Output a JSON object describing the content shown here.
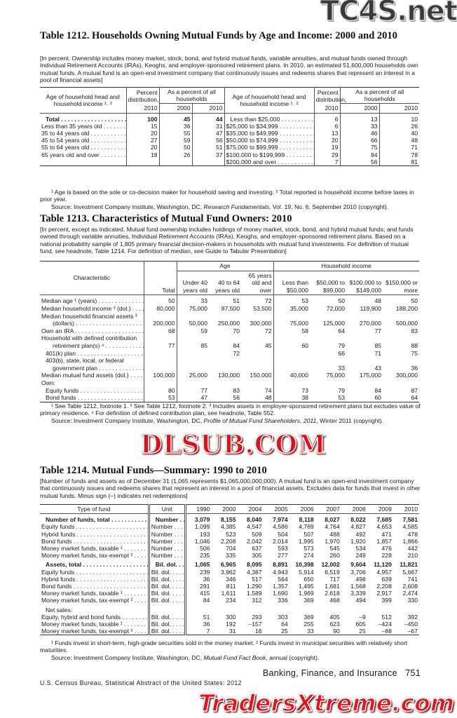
{
  "watermarks": {
    "top": "TC4S.net",
    "middle": "DLSUB.COM",
    "bottom": "TradersXtreme.com"
  },
  "t1212": {
    "title": "Table 1212. Households Owning Mutual Funds by Age and Income: 2000 and 2010",
    "headnote": "[In percent. Ownership includes money market, stock, bond, and hybrid mutual funds, variable annuities, and mutual funds owned through Individual Retirement Accounts (IRAs), Keoghs, and employer-sponsored retirement plans. In 2010, an estimated 51,600,000 households own mutual funds. A mutual fund is an open-end investment company that continuously issues and redeems shares that represent an interest in a pool of financial assets]",
    "header": {
      "label": "Age of household head and household income ¹˒ ²",
      "pct": "Percent distribution,",
      "pct_year": "2010",
      "share": "As a percent of all households",
      "y2000": "2000",
      "y2010": "2010"
    },
    "rows": [
      {
        "total": true,
        "left": [
          "Total",
          "100",
          "45",
          "44"
        ],
        "right": [
          "Less than $25,000",
          "6",
          "13",
          "10"
        ]
      },
      {
        "left": [
          "Less than 35 years old",
          "15",
          "36",
          "31"
        ],
        "right": [
          "$25,000 to $34,999",
          "6",
          "33",
          "26"
        ]
      },
      {
        "left": [
          "35 to 44 years old",
          "20",
          "55",
          "47"
        ],
        "right": [
          "$35,000 to $49,999",
          "13",
          "46",
          "40"
        ]
      },
      {
        "left": [
          "45 to 54 years old",
          "27",
          "59",
          "56"
        ],
        "right": [
          "$50,000 to $74,999",
          "20",
          "66",
          "48"
        ]
      },
      {
        "left": [
          "55 to 64 years old",
          "20",
          "50",
          "51"
        ],
        "right": [
          "$75,000 to $99,999",
          "19",
          "75",
          "71"
        ]
      },
      {
        "left": [
          "65 years old and over",
          "18",
          "26",
          "37"
        ],
        "right": [
          "$100,000 to $199,999",
          "29",
          "84",
          "78"
        ]
      },
      {
        "left": [
          "",
          "",
          "",
          ""
        ],
        "right": [
          "$200,000 and over",
          "7",
          "56",
          "81"
        ]
      }
    ],
    "footnote": "¹ Age is based on the sole or co-decision maker for household saving and investing. ² Total reported is household income before taxes in prior year.",
    "source": {
      "pre": "Source: Investment Company Institute, Washington, DC, ",
      "italic": "Research Fundamentals",
      "post": ", Vol. 19, No. 6, September 2010 (copyright)."
    }
  },
  "t1213": {
    "title": "Table 1213. Characteristics of Mutual Fund Owners: 2010",
    "headnote": "[In percent, except as indicated. Mutual fund ownership includes holdings of money market, stock, bond, and hybrid mutual funds; and funds owned through variable annuities, Individual Retirement Accounts (IRAs), Keoghs, and employer-sponsored retirement plans. Based on a national probability sample of 1,805 primary financial decision-makers in households with mutual fund investments. For definition of mutual fund, see headnote, Table 1214. For definition of median, see Guide to Tabular Presentation]",
    "header": {
      "label": "Characteristic",
      "total": "Total",
      "age": "Age",
      "income": "Household income",
      "cols": [
        "Under 40 years old",
        "40 to 64 years old",
        "65 years old and over",
        "Less than $50,000",
        "$50,000 to $99,000",
        "$100,000 to $149,000",
        "$150,000 or more"
      ]
    },
    "rows": [
      {
        "label": "Median age ¹ (years)",
        "values": [
          "50",
          "33",
          "51",
          "72",
          "53",
          "50",
          "48",
          "50"
        ]
      },
      {
        "label": "Median household income ² (dol.)",
        "values": [
          "80,000",
          "75,000",
          "87,500",
          "53,500",
          "35,000",
          "72,000",
          "119,900",
          "188,200"
        ]
      },
      {
        "label": "Median household financial assets ³",
        "nodots": true,
        "values": []
      },
      {
        "label": "(dollars)",
        "indent": 2,
        "values": [
          "200,000",
          "50,000",
          "250,000",
          "300,000",
          "75,000",
          "125,000",
          "270,000",
          "500,000"
        ]
      },
      {
        "label": "Own an IRA",
        "values": [
          "68",
          "59",
          "70",
          "72",
          "58",
          "64",
          "77",
          "83"
        ]
      },
      {
        "label": "Household with defined contribution",
        "nodots": true,
        "values": []
      },
      {
        "label": "retirement plan(s) ⁴",
        "indent": 2,
        "values": [
          "77",
          "85",
          "84",
          "45",
          "60",
          "79",
          "85",
          "88"
        ]
      },
      {
        "label": "401(k) plan",
        "indent": 1,
        "values": [
          "",
          "",
          "72",
          "",
          "",
          "66",
          "71",
          "75"
        ]
      },
      {
        "label": "403(b), state, local, or federal",
        "indent": 1,
        "nodots": true,
        "values": []
      },
      {
        "label": "government plan",
        "indent": 2,
        "values": [
          "",
          "",
          "",
          "",
          "",
          "33",
          "43",
          "36"
        ]
      },
      {
        "label": "Median mutual fund assets (dol.)",
        "values": [
          "100,000",
          "25,000",
          "130,000",
          "150,000",
          "40,000",
          "75,000",
          "175,000",
          "300,000"
        ]
      },
      {
        "label": "Own:",
        "nodots": true,
        "values": []
      },
      {
        "label": "Equity funds",
        "indent": 1,
        "values": [
          "80",
          "77",
          "83",
          "74",
          "73",
          "79",
          "84",
          "87"
        ]
      },
      {
        "label": "Bond funds",
        "indent": 1,
        "values": [
          "53",
          "47",
          "56",
          "48",
          "38",
          "53",
          "60",
          "64"
        ]
      }
    ],
    "footnote": "¹ See Table 1212, footnote 1. ² See Table 1212, footnote 2. ³ Includes assets in employer-sponsored retirement plans but excludes value of primary residence. ⁴ For definition of defined contribution plan, see headnote, Table 552.",
    "source": {
      "pre": "Source: Investment Company Institute, Washington, DC, ",
      "italic": "Profile of Mutual Fund Shareholders, 2011",
      "post": ", Winter 2011 (copyright)."
    }
  },
  "t1214": {
    "title": "Table 1214. Mutual Funds—Summary: 1990 to 2010",
    "headnote": "[Number of funds and assets as of December 31 (1,065 represents $1,065,000,000,000). A mutual fund is an open-end investment company that continuously issues and redeems shares that represent an interest in a pool of financial assets. Excludes data for funds that invest in other mutual funds. Minus sign (–) indicates net redemptions]",
    "header": {
      "label": "Type of fund",
      "unit": "Unit",
      "years": [
        "1990",
        "2000",
        "2004",
        "2005",
        "2006",
        "2007",
        "2008",
        "2009",
        "2010"
      ]
    },
    "rows": [
      {
        "label": "Number of funds, total",
        "unit": "Number",
        "total": true,
        "values": [
          "3,079",
          "8,155",
          "8,040",
          "7,974",
          "8,118",
          "8,027",
          "8,022",
          "7,685",
          "7,581"
        ]
      },
      {
        "label": "Equity funds",
        "unit": "Number",
        "values": [
          "1,099",
          "4,385",
          "4,547",
          "4,586",
          "4,769",
          "4,764",
          "4,827",
          "4,653",
          "4,585"
        ]
      },
      {
        "label": "Hybrid funds",
        "unit": "Number",
        "values": [
          "193",
          "523",
          "509",
          "504",
          "507",
          "488",
          "492",
          "471",
          "478"
        ]
      },
      {
        "label": "Bond funds",
        "unit": "Number",
        "values": [
          "1,046",
          "2,208",
          "2,042",
          "2,014",
          "1,995",
          "1,970",
          "1,920",
          "1,857",
          "1,866"
        ]
      },
      {
        "label": "Money market funds, taxable ¹",
        "unit": "Number",
        "values": [
          "506",
          "704",
          "637",
          "593",
          "573",
          "545",
          "534",
          "476",
          "442"
        ]
      },
      {
        "label": "Money market funds, tax-exempt ²",
        "unit": "Number",
        "values": [
          "235",
          "335",
          "305",
          "277",
          "274",
          "260",
          "249",
          "228",
          "210"
        ]
      },
      {
        "label": "Assets, total",
        "unit": "Bil. dol.",
        "total": true,
        "gap": true,
        "values": [
          "1,065",
          "6,965",
          "8,095",
          "8,891",
          "10,398",
          "12,002",
          "9,604",
          "11,120",
          "11,821"
        ]
      },
      {
        "label": "Equity funds",
        "unit": "Bil. dol.",
        "values": [
          "239",
          "3,962",
          "4,387",
          "4,943",
          "5,914",
          "6,519",
          "3,706",
          "4,957",
          "5,667"
        ]
      },
      {
        "label": "Hybrid funds",
        "unit": "Bil. dol.",
        "values": [
          "36",
          "346",
          "517",
          "564",
          "650",
          "717",
          "498",
          "639",
          "741"
        ]
      },
      {
        "label": "Bond funds",
        "unit": "Bil. dol.",
        "values": [
          "291",
          "811",
          "1,290",
          "1,357",
          "1,495",
          "1,681",
          "1,568",
          "2,208",
          "2,608"
        ]
      },
      {
        "label": "Money market funds, taxable ¹",
        "unit": "Bil. dol.",
        "values": [
          "415",
          "1,611",
          "1,589",
          "1,690",
          "1,969",
          "2,618",
          "3,339",
          "2,917",
          "2,474"
        ]
      },
      {
        "label": "Money market funds, tax-exempt ²",
        "unit": "Bil. dol.",
        "values": [
          "84",
          "234",
          "312",
          "336",
          "369",
          "468",
          "494",
          "399",
          "330"
        ]
      },
      {
        "label": "Net sales:",
        "unit": "",
        "nodots": true,
        "indent": 1,
        "gap": true,
        "values": []
      },
      {
        "label": "Equity, hybrid and bond funds",
        "unit": "Bil. dol.",
        "values": [
          "51",
          "300",
          "293",
          "303",
          "369",
          "405",
          "–9",
          "512",
          "392"
        ]
      },
      {
        "label": "Money market funds, taxable ¹",
        "unit": "Bil. dol.",
        "values": [
          "36",
          "192",
          "–157",
          "64",
          "255",
          "623",
          "605",
          "–424",
          "–450"
        ]
      },
      {
        "label": "Money market funds, tax-exempt ²",
        "unit": "Bil. dol.",
        "values": [
          "7",
          "31",
          "16",
          "25",
          "33",
          "90",
          "25",
          "–88",
          "–67"
        ]
      }
    ],
    "footnote": "¹ Funds invest in short-term, high-grade securities sold in the money market. ² Funds invest in municipal securities with relatively short maturities.",
    "source": {
      "pre": "Source: Investment Company Institute, Washington, DC, ",
      "italic": "Mutual Fund Fact Book",
      "post": ", annual (copyright)."
    }
  },
  "footer": {
    "section": "Banking, Finance, and Insurance",
    "page": "751",
    "publication": "U.S. Census Bureau, Statistical Abstract of the United States: 2012"
  }
}
